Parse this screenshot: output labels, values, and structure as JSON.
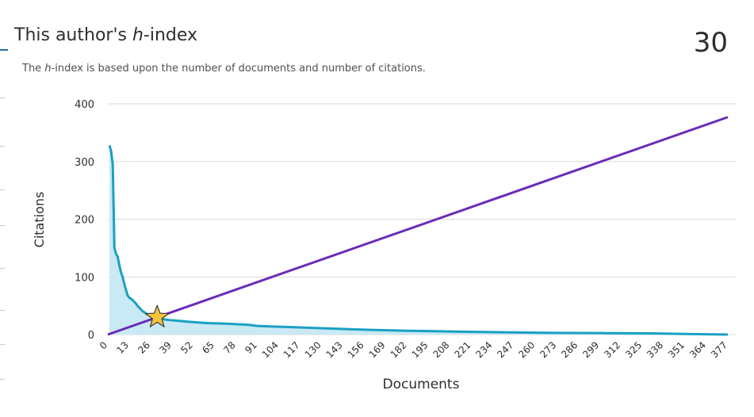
{
  "header": {
    "title_prefix": "This author's ",
    "title_h": "h",
    "title_suffix": "-index",
    "h_index": "30",
    "subtitle_prefix": "The ",
    "subtitle_h": "h",
    "subtitle_suffix": "-index is based upon the number of documents and number of citations."
  },
  "colors": {
    "citations_line": "#1aa0c4",
    "citations_fill": "#c9e9f4",
    "h_line": "#6a2bb8",
    "star_fill": "#f7c43b",
    "star_stroke": "#3a3a3a",
    "grid": "#d9d9d9"
  },
  "chart_data": {
    "type": "area",
    "xlabel": "Documents",
    "ylabel": "Citations",
    "xlim": [
      0,
      377
    ],
    "ylim": [
      0,
      400
    ],
    "x_ticks": [
      0,
      13,
      26,
      39,
      52,
      65,
      78,
      91,
      104,
      117,
      130,
      143,
      156,
      169,
      182,
      195,
      208,
      221,
      234,
      247,
      260,
      273,
      286,
      299,
      312,
      325,
      338,
      351,
      364,
      377
    ],
    "y_ticks": [
      0,
      100,
      200,
      300,
      400
    ],
    "grid": "horizontal",
    "series": [
      {
        "values": [
          [
            1,
            328
          ],
          [
            2,
            318
          ],
          [
            3,
            295
          ],
          [
            4,
            150
          ],
          [
            5,
            140
          ],
          [
            6,
            135
          ],
          [
            7,
            120
          ],
          [
            8,
            108
          ],
          [
            9,
            100
          ],
          [
            10,
            88
          ],
          [
            11,
            78
          ],
          [
            12,
            68
          ],
          [
            13,
            64
          ],
          [
            14,
            62
          ],
          [
            15,
            60
          ],
          [
            16,
            57
          ],
          [
            17,
            54
          ],
          [
            18,
            50
          ],
          [
            19,
            47
          ],
          [
            20,
            44
          ],
          [
            21,
            41
          ],
          [
            22,
            39
          ],
          [
            23,
            37
          ],
          [
            24,
            35
          ],
          [
            25,
            34
          ],
          [
            26,
            33
          ],
          [
            27,
            32
          ],
          [
            28,
            31
          ],
          [
            29,
            30
          ],
          [
            30,
            30
          ],
          [
            31,
            29
          ],
          [
            32,
            28
          ],
          [
            33,
            27
          ],
          [
            35,
            26
          ],
          [
            38,
            25
          ],
          [
            42,
            24
          ],
          [
            46,
            23
          ],
          [
            50,
            22
          ],
          [
            55,
            21
          ],
          [
            60,
            20
          ],
          [
            70,
            19
          ],
          [
            78,
            18
          ],
          [
            85,
            17
          ],
          [
            91,
            15
          ],
          [
            100,
            14
          ],
          [
            110,
            13
          ],
          [
            120,
            12
          ],
          [
            130,
            11
          ],
          [
            140,
            10
          ],
          [
            150,
            9
          ],
          [
            160,
            8
          ],
          [
            175,
            7
          ],
          [
            195,
            6
          ],
          [
            215,
            5
          ],
          [
            240,
            4
          ],
          [
            270,
            3
          ],
          [
            300,
            2.5
          ],
          [
            330,
            2
          ],
          [
            350,
            1
          ],
          [
            377,
            0
          ]
        ]
      },
      {
        "values": [
          [
            0,
            0
          ],
          [
            377,
            377
          ]
        ]
      }
    ],
    "marker": {
      "x": 30,
      "y": 30,
      "shape": "star"
    }
  }
}
